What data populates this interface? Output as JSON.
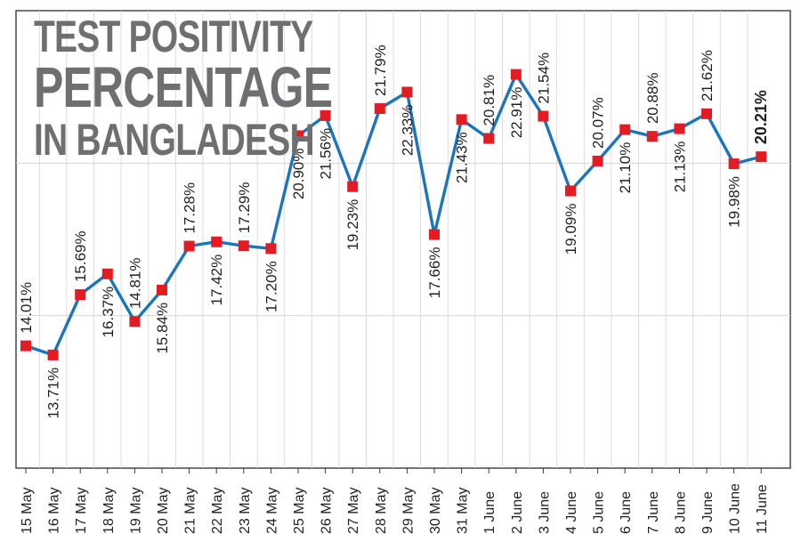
{
  "title_lines": [
    "TEST POSITIVITY",
    "PERCENTAGE",
    "IN BANGLADESH"
  ],
  "colors": {
    "line": "#1b75bc",
    "marker": "#e31b23",
    "text": "#231f20",
    "title": "#6f6f71",
    "grid": "#d4d4d4",
    "frame": "#3a3a3a"
  },
  "chart_data": {
    "type": "line",
    "title": "TEST POSITIVITY PERCENTAGE IN BANGLADESH",
    "xlabel": "",
    "ylabel": "",
    "ylim": [
      10,
      25
    ],
    "grid": "horizontal",
    "categories": [
      "15 May",
      "16 May",
      "17 May",
      "18 May",
      "19 May",
      "20 May",
      "21 May",
      "22 May",
      "23 May",
      "24 May",
      "25 May",
      "26 May",
      "27 May",
      "28 May",
      "29 May",
      "30 May",
      "31 May",
      "1 June",
      "2 June",
      "3 June",
      "4 June",
      "5 June",
      "6 June",
      "7 June",
      "8 June",
      "9 June",
      "10 June",
      "11 June"
    ],
    "values": [
      14.01,
      13.71,
      15.69,
      16.37,
      14.81,
      15.84,
      17.28,
      17.42,
      17.29,
      17.2,
      20.9,
      21.56,
      19.23,
      21.79,
      22.33,
      17.66,
      21.43,
      20.81,
      22.91,
      21.54,
      19.09,
      20.07,
      21.1,
      20.88,
      21.13,
      21.62,
      19.98,
      20.21
    ],
    "labels": [
      "14.01%",
      "13.71%",
      "15.69%",
      "16.37%",
      "14.81%",
      "15.84%",
      "17.28%",
      "17.42%",
      "17.29%",
      "17.20%",
      "20.90%",
      "21.56%",
      "19.23%",
      "21.79%",
      "22.33%",
      "17.66%",
      "21.43%",
      "20.81%",
      "22.91%",
      "21.54%",
      "19.09%",
      "20.07%",
      "21.10%",
      "20.88%",
      "21.13%",
      "21.62%",
      "19.98%",
      "20.21%"
    ],
    "label_positions": [
      "above",
      "below",
      "above",
      "below",
      "above",
      "below",
      "above",
      "below",
      "above",
      "below",
      "below",
      "below",
      "below",
      "above",
      "below",
      "below",
      "below",
      "above",
      "below",
      "above",
      "below",
      "above",
      "below",
      "above",
      "below",
      "above",
      "below",
      "above"
    ],
    "highlight_last_label": true
  }
}
